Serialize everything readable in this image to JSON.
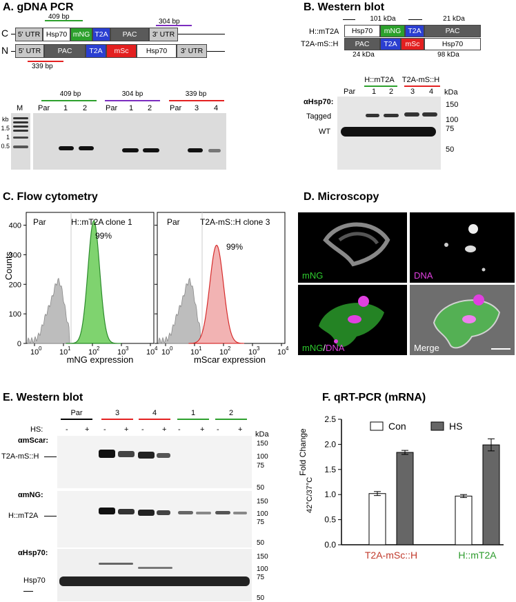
{
  "panelA": {
    "title": "A. gDNA PCR",
    "rowC": "C",
    "rowN": "N",
    "constructC": [
      "5' UTR",
      "Hsp70",
      "mNG",
      "T2A",
      "PAC",
      "3' UTR"
    ],
    "constructN": [
      "5' UTR",
      "PAC",
      "T2A",
      "mSc",
      "Hsp70",
      "3' UTR"
    ],
    "amp409": "409 bp",
    "amp304": "304 bp",
    "amp339": "339 bp",
    "gelM": "M",
    "kb": "kb",
    "markers": [
      "1.5",
      "1",
      "0.5"
    ],
    "groups": [
      "409 bp",
      "304 bp",
      "339 bp"
    ],
    "lanes": [
      "Par",
      "1",
      "2",
      "Par",
      "1",
      "2",
      "Par",
      "3",
      "4"
    ]
  },
  "panelB": {
    "title": "B. Western blot",
    "kda101": "101 kDa",
    "kda21": "21 kDa",
    "kda24": "24 kDa",
    "kda98": "98 kDa",
    "rowH": "H::mT2A",
    "rowT": "T2A-mS::H",
    "constructH": [
      "Hsp70",
      "mNG",
      "T2A",
      "PAC"
    ],
    "constructT": [
      "PAC",
      "T2A",
      "mSc",
      "Hsp70"
    ],
    "groupH": "H::mT2A",
    "groupT": "T2A-mS::H",
    "lanes": [
      "Par",
      "1",
      "2",
      "3",
      "4"
    ],
    "kDa": "kDa",
    "ab": "αHsp70:",
    "tagged": "Tagged",
    "wt": "WT",
    "markers": [
      "150",
      "100",
      "75",
      "50"
    ]
  },
  "panelC": {
    "title": "C. Flow cytometry",
    "ylabel": "Counts",
    "yticks": [
      "0",
      "100",
      "200",
      "300",
      "400"
    ],
    "plot1": {
      "par": "Par",
      "label": "H::mT2A  clone 1",
      "pct": "99%",
      "xlabel": "mNG expression"
    },
    "plot2": {
      "par": "Par",
      "label": "T2A-mS::H clone 3",
      "pct": "99%",
      "xlabel": "mScar expression"
    },
    "xticks": [
      "10",
      "10",
      "10",
      "10",
      "10"
    ],
    "xexp": [
      "0",
      "1",
      "2",
      "3",
      "4"
    ],
    "colors": {
      "green": "#7fd36f",
      "red": "#f2b3b3",
      "gray": "#bdbdbd"
    }
  },
  "panelD": {
    "title": "D. Microscopy",
    "l1": "mNG",
    "l2": "DNA",
    "l3a": "mNG",
    "l3b": "/",
    "l3c": "DNA",
    "l4": "Merge"
  },
  "panelE": {
    "title": "E. Western blot",
    "groups": [
      "Par",
      "3",
      "4",
      "1",
      "2"
    ],
    "hs": "HS:",
    "signs": [
      "-",
      "+",
      "-",
      "+",
      "-",
      "+",
      "-",
      "+",
      "-",
      "+"
    ],
    "kDa": "kDa",
    "ab1": "αmScar:",
    "lab1": "T2A-mS::H",
    "ab2": "αmNG:",
    "lab2": "H::mT2A",
    "ab3": "αHsp70:",
    "lab3": "Hsp70",
    "markers": [
      "150",
      "100",
      "75",
      "50"
    ]
  },
  "panelF": {
    "title": "F. qRT-PCR (mRNA)",
    "ylabel1": "Fold Change",
    "ylabel2": "42°C/37°C",
    "legend": [
      "Con",
      "HS"
    ],
    "categories": [
      "T2A-mSc::H",
      "H::mT2A"
    ],
    "yticks": [
      "0.0",
      "0.5",
      "1.0",
      "1.5",
      "2.0",
      "2.5"
    ]
  },
  "chart_data": {
    "type": "bar",
    "title": "F. qRT-PCR (mRNA)",
    "ylabel": "Fold Change 42°C/37°C",
    "ylim": [
      0,
      2.5
    ],
    "categories": [
      "T2A-mSc::H",
      "H::mT2A"
    ],
    "series": [
      {
        "name": "Con",
        "values": [
          1.02,
          0.97
        ],
        "errors": [
          0.04,
          0.03
        ],
        "color": "#ffffff"
      },
      {
        "name": "HS",
        "values": [
          1.84,
          1.99
        ],
        "errors": [
          0.04,
          0.12
        ],
        "color": "#666666"
      }
    ]
  }
}
